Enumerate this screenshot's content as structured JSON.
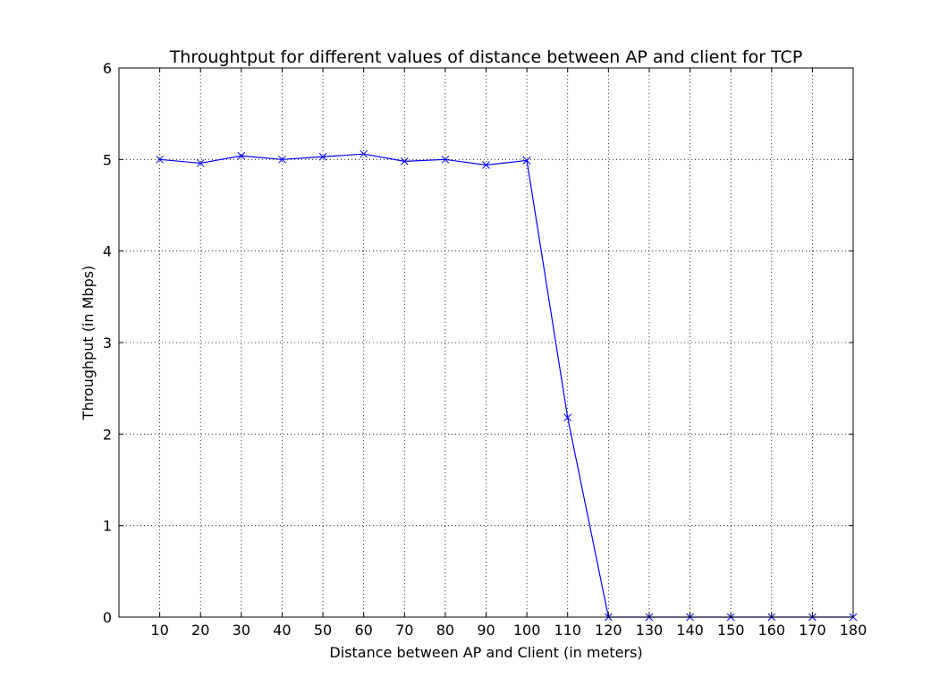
{
  "chart_data": {
    "type": "line",
    "title": "Throughtput for different values of distance between AP and client for TCP",
    "xlabel": "Distance between AP and Client (in meters)",
    "ylabel": "Throughput (in Mbps)",
    "x": [
      10,
      20,
      30,
      40,
      50,
      60,
      70,
      80,
      90,
      100,
      110,
      120,
      130,
      140,
      150,
      160,
      170,
      180
    ],
    "xlim": [
      0,
      180
    ],
    "ylim": [
      0,
      6
    ],
    "xticks": [
      10,
      20,
      30,
      40,
      50,
      60,
      70,
      80,
      90,
      100,
      110,
      120,
      130,
      140,
      150,
      160,
      170,
      180
    ],
    "yticks": [
      0,
      1,
      2,
      3,
      4,
      5,
      6
    ],
    "grid": true,
    "series": [
      {
        "color": "#0000ff",
        "marker": "x",
        "values": [
          5.0,
          4.96,
          5.04,
          5.0,
          5.03,
          5.06,
          4.98,
          5.0,
          4.94,
          4.99,
          2.18,
          0,
          0,
          0,
          0,
          0,
          0,
          0
        ]
      }
    ]
  }
}
